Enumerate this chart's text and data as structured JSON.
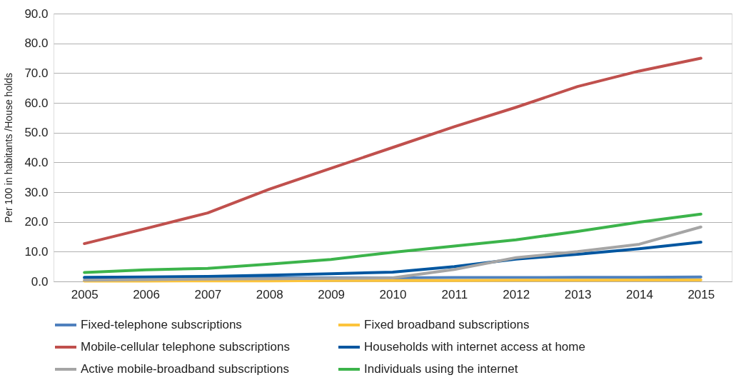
{
  "chart_data": {
    "type": "line",
    "ylabel": "Per 100 in habitants /House holds",
    "categories": [
      "2005",
      "2006",
      "2007",
      "2008",
      "2009",
      "2010",
      "2011",
      "2012",
      "2013",
      "2014",
      "2015"
    ],
    "series": [
      {
        "name": "Fixed-telephone subscriptions",
        "color": "#4f81bd",
        "values": [
          1.2,
          1.2,
          1.2,
          1.2,
          1.2,
          1.2,
          1.3,
          1.3,
          1.4,
          1.4,
          1.5
        ]
      },
      {
        "name": "Fixed broadband subscriptions",
        "color": "#fcc43c",
        "values": [
          0.1,
          0.1,
          0.2,
          0.2,
          0.3,
          0.3,
          0.3,
          0.4,
          0.4,
          0.5,
          0.5
        ]
      },
      {
        "name": "Mobile-cellular telephone subscriptions",
        "color": "#c0504d",
        "values": [
          12.7,
          17.8,
          23.0,
          31.0,
          38.0,
          45.0,
          52.0,
          58.5,
          65.5,
          70.7,
          75.0
        ]
      },
      {
        "name": "Households with internet access at home",
        "color": "#0056a0",
        "values": [
          1.4,
          1.5,
          1.7,
          2.1,
          2.6,
          3.1,
          5.0,
          7.5,
          9.1,
          11.0,
          13.2
        ]
      },
      {
        "name": "Active mobile-broadband subscriptions",
        "color": "#a5a5a5",
        "values": [
          0.4,
          0.6,
          0.8,
          0.9,
          1.0,
          1.2,
          4.0,
          8.0,
          10.0,
          12.5,
          18.3
        ]
      },
      {
        "name": "Individuals using the internet",
        "color": "#3cb44b",
        "values": [
          3.0,
          3.9,
          4.4,
          5.8,
          7.4,
          9.8,
          11.9,
          14.0,
          16.8,
          19.9,
          22.6
        ]
      }
    ],
    "ylim": [
      0,
      90
    ],
    "yticks": [
      {
        "value": 0,
        "label": "0.0"
      },
      {
        "value": 10,
        "label": "10.0"
      },
      {
        "value": 20,
        "label": "20.0"
      },
      {
        "value": 30,
        "label": "30.0"
      },
      {
        "value": 40,
        "label": "40.0"
      },
      {
        "value": 50,
        "label": "50.0"
      },
      {
        "value": 60,
        "label": "60.0"
      },
      {
        "value": 70,
        "label": "70.0"
      },
      {
        "value": 80,
        "label": "80.0"
      },
      {
        "value": 90,
        "label": "90.0"
      }
    ],
    "grid": "y",
    "legend": "bottom",
    "marker": "none",
    "line_style": "solid"
  }
}
